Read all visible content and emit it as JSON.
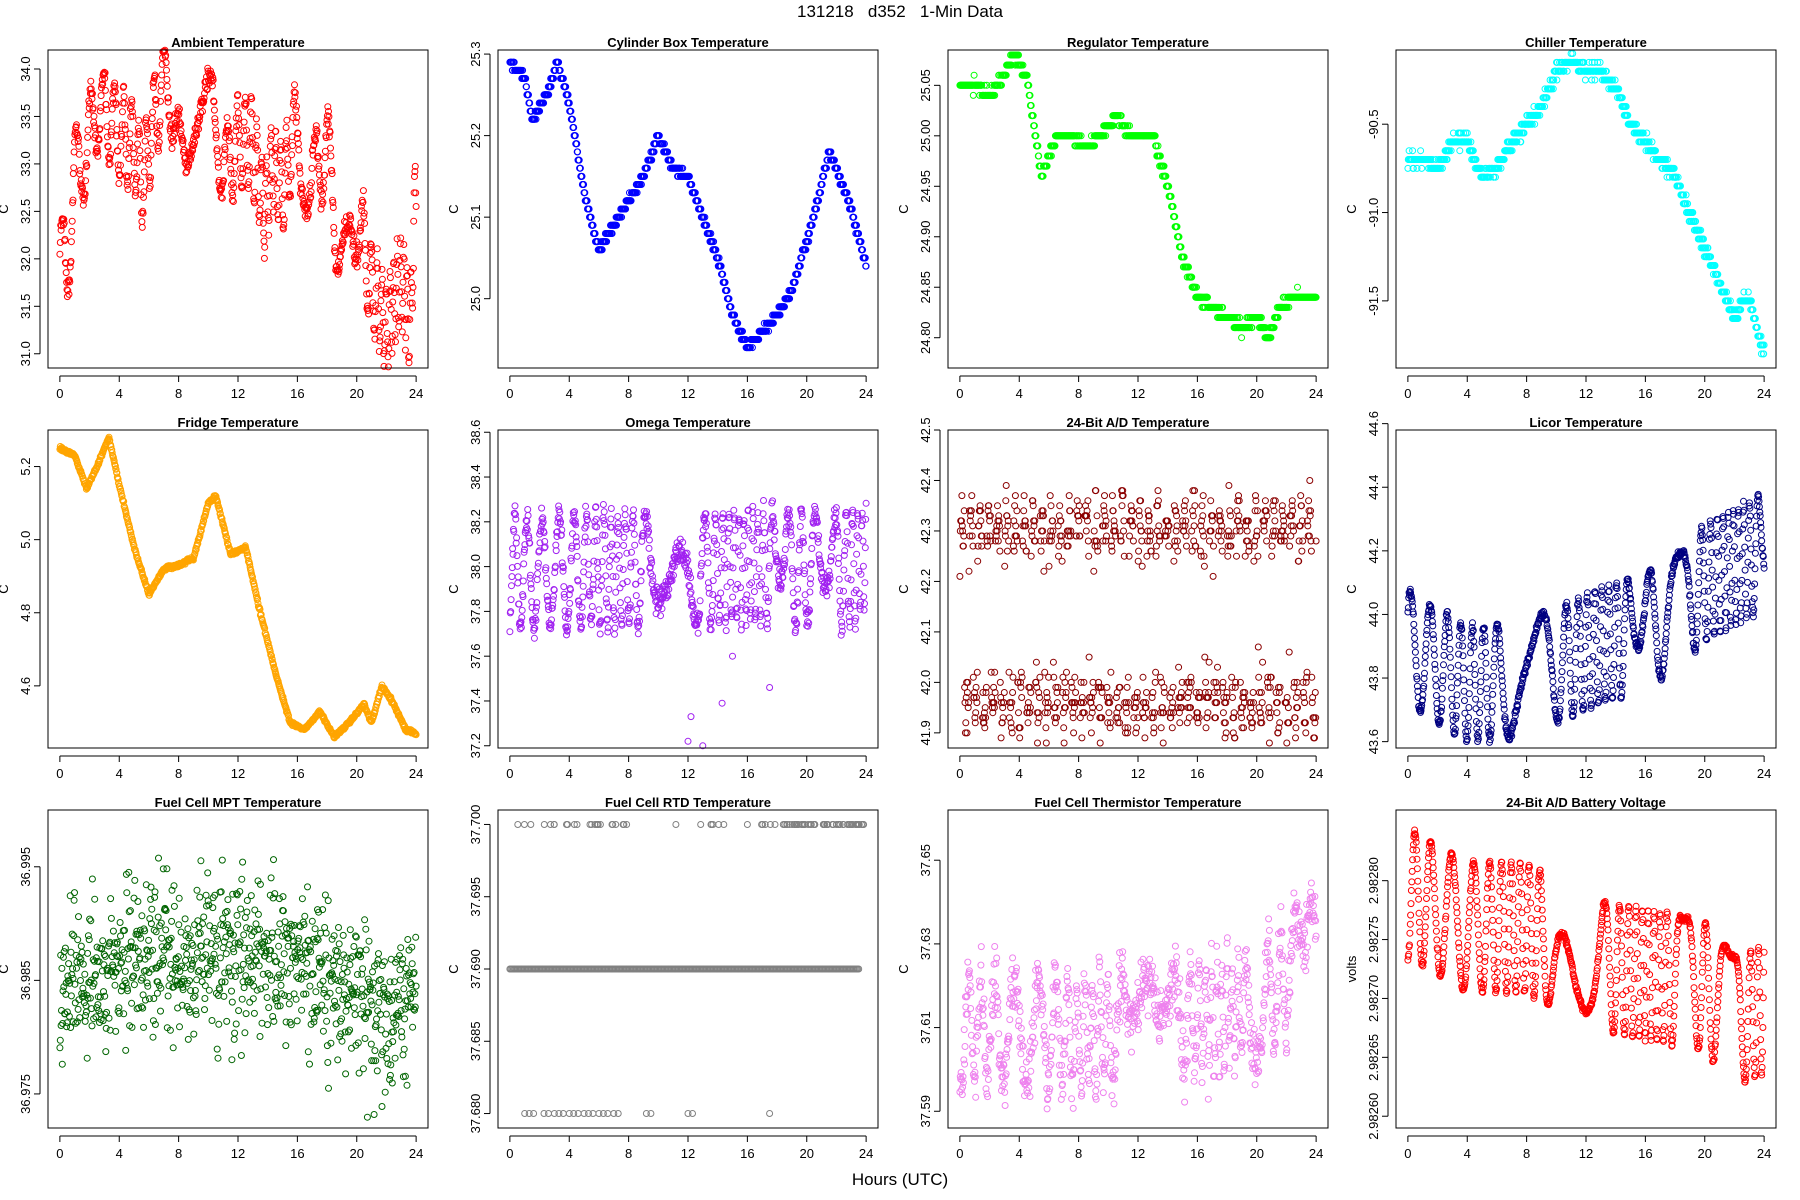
{
  "figure": {
    "title": "131218   d352   1-Min Data",
    "xlabel": "Hours (UTC)"
  },
  "chart_data": [
    {
      "type": "scatter",
      "title": "Ambient Temperature",
      "ylabel": "C",
      "color": "#ff0000",
      "x_ticks": [
        0,
        4,
        8,
        12,
        16,
        20,
        24
      ],
      "y_ticks": [
        "31.0",
        "31.5",
        "32.0",
        "32.5",
        "33.0",
        "33.5",
        "34.0"
      ],
      "ylim": [
        30.85,
        34.2
      ],
      "control": [
        [
          0,
          32.1
        ],
        [
          0.5,
          31.9
        ],
        [
          1,
          32.9
        ],
        [
          1.8,
          33.1
        ],
        [
          2.5,
          33.6
        ],
        [
          3.3,
          33.5
        ],
        [
          4,
          33.3
        ],
        [
          5,
          33.2
        ],
        [
          5.5,
          32.8
        ],
        [
          6.5,
          33.6
        ],
        [
          7.3,
          33.9
        ],
        [
          8,
          33.4
        ],
        [
          8.5,
          32.5
        ],
        [
          9.5,
          33.1
        ],
        [
          10.3,
          33.9
        ],
        [
          11,
          32.9
        ],
        [
          12,
          33.2
        ],
        [
          12.8,
          33.3
        ],
        [
          13.8,
          32.5
        ],
        [
          14.3,
          33.0
        ],
        [
          15,
          32.7
        ],
        [
          15.8,
          33.3
        ],
        [
          16.8,
          32.7
        ],
        [
          18,
          33.2
        ],
        [
          18.6,
          32.3
        ],
        [
          20,
          32.5
        ],
        [
          21,
          31.7
        ],
        [
          22,
          31.3
        ],
        [
          23,
          31.8
        ],
        [
          23.6,
          31.3
        ],
        [
          24,
          32.9
        ]
      ],
      "amp": 0.45,
      "period": 0.8,
      "noise": 0.1,
      "style": "osc"
    },
    {
      "type": "scatter",
      "title": "Cylinder Box Temperature",
      "ylabel": "C",
      "color": "#0000ff",
      "x_ticks": [
        0,
        4,
        8,
        12,
        16,
        20,
        24
      ],
      "y_ticks": [
        "25.0",
        "25.1",
        "25.2",
        "25.3"
      ],
      "ylim": [
        24.915,
        25.305
      ],
      "control": [
        [
          0,
          25.29
        ],
        [
          1,
          25.27
        ],
        [
          1.5,
          25.22
        ],
        [
          2.5,
          25.25
        ],
        [
          3.2,
          25.29
        ],
        [
          4,
          25.24
        ],
        [
          5,
          25.13
        ],
        [
          6,
          25.06
        ],
        [
          7,
          25.09
        ],
        [
          8,
          25.12
        ],
        [
          9,
          25.15
        ],
        [
          10,
          25.2
        ],
        [
          11,
          25.16
        ],
        [
          12,
          25.15
        ],
        [
          13,
          25.1
        ],
        [
          14,
          25.05
        ],
        [
          15,
          24.98
        ],
        [
          16,
          24.94
        ],
        [
          17,
          24.96
        ],
        [
          18,
          24.98
        ],
        [
          19,
          25.01
        ],
        [
          20,
          25.07
        ],
        [
          21,
          25.14
        ],
        [
          21.5,
          25.18
        ],
        [
          22,
          25.16
        ],
        [
          23,
          25.11
        ],
        [
          24,
          25.04
        ]
      ],
      "amp": 0,
      "noise": 0.003,
      "quant": 0.01,
      "style": "smooth"
    },
    {
      "type": "scatter",
      "title": "Regulator Temperature",
      "ylabel": "C",
      "color": "#00ff00",
      "x_ticks": [
        0,
        4,
        8,
        12,
        16,
        20,
        24
      ],
      "y_ticks": [
        "24.80",
        "24.85",
        "24.90",
        "24.95",
        "25.00",
        "25.05"
      ],
      "ylim": [
        24.77,
        25.085
      ],
      "control": [
        [
          0,
          25.05
        ],
        [
          1,
          25.05
        ],
        [
          2,
          25.04
        ],
        [
          3,
          25.06
        ],
        [
          3.6,
          25.08
        ],
        [
          4.5,
          25.06
        ],
        [
          5.5,
          24.96
        ],
        [
          6.5,
          25.0
        ],
        [
          7.5,
          25.0
        ],
        [
          8.5,
          24.99
        ],
        [
          9.5,
          25.0
        ],
        [
          10.5,
          25.02
        ],
        [
          11.5,
          25.0
        ],
        [
          13,
          25.0
        ],
        [
          14,
          24.95
        ],
        [
          15,
          24.88
        ],
        [
          16,
          24.84
        ],
        [
          17,
          24.83
        ],
        [
          18,
          24.82
        ],
        [
          19,
          24.81
        ],
        [
          20,
          24.82
        ],
        [
          20.8,
          24.8
        ],
        [
          21.5,
          24.83
        ],
        [
          22.5,
          24.84
        ],
        [
          24,
          24.84
        ]
      ],
      "amp": 0,
      "noise": 0.004,
      "quant": 0.01,
      "style": "smooth"
    },
    {
      "type": "scatter",
      "title": "Chiller Temperature",
      "ylabel": "C",
      "color": "#00ffff",
      "x_ticks": [
        0,
        4,
        8,
        12,
        16,
        20,
        24
      ],
      "y_ticks": [
        "-91.5",
        "-91.0",
        "-90.5"
      ],
      "ylim": [
        -91.88,
        -90.08
      ],
      "control": [
        [
          0,
          -90.7
        ],
        [
          1,
          -90.7
        ],
        [
          2,
          -90.75
        ],
        [
          3,
          -90.6
        ],
        [
          4,
          -90.6
        ],
        [
          5,
          -90.8
        ],
        [
          6,
          -90.75
        ],
        [
          7,
          -90.6
        ],
        [
          8,
          -90.5
        ],
        [
          9,
          -90.4
        ],
        [
          10,
          -90.2
        ],
        [
          11,
          -90.15
        ],
        [
          12,
          -90.2
        ],
        [
          13,
          -90.2
        ],
        [
          14,
          -90.3
        ],
        [
          15,
          -90.5
        ],
        [
          16,
          -90.6
        ],
        [
          17,
          -90.7
        ],
        [
          18,
          -90.8
        ],
        [
          19,
          -91.0
        ],
        [
          20,
          -91.2
        ],
        [
          21,
          -91.4
        ],
        [
          22,
          -91.6
        ],
        [
          22.5,
          -91.5
        ],
        [
          23,
          -91.5
        ],
        [
          24,
          -91.8
        ]
      ],
      "amp": 0,
      "noise": 0.03,
      "quant": 0.05,
      "style": "smooth"
    },
    {
      "type": "scatter",
      "title": "Fridge Temperature",
      "ylabel": "C",
      "color": "#ffa500",
      "x_ticks": [
        0,
        4,
        8,
        12,
        16,
        20,
        24
      ],
      "y_ticks": [
        "4.6",
        "4.8",
        "5.0",
        "5.2"
      ],
      "ylim": [
        4.43,
        5.3
      ],
      "control": [
        [
          0,
          5.25
        ],
        [
          1,
          5.23
        ],
        [
          1.8,
          5.14
        ],
        [
          2.5,
          5.2
        ],
        [
          3.3,
          5.28
        ],
        [
          4,
          5.15
        ],
        [
          5,
          4.98
        ],
        [
          6,
          4.85
        ],
        [
          7,
          4.92
        ],
        [
          8,
          4.93
        ],
        [
          9,
          4.95
        ],
        [
          10,
          5.1
        ],
        [
          10.5,
          5.12
        ],
        [
          11.5,
          4.96
        ],
        [
          12.5,
          4.98
        ],
        [
          13.5,
          4.8
        ],
        [
          14.5,
          4.64
        ],
        [
          15.5,
          4.5
        ],
        [
          16.5,
          4.48
        ],
        [
          17.5,
          4.53
        ],
        [
          18.5,
          4.46
        ],
        [
          19.5,
          4.5
        ],
        [
          20.5,
          4.55
        ],
        [
          21,
          4.5
        ],
        [
          21.7,
          4.6
        ],
        [
          22.5,
          4.55
        ],
        [
          23.3,
          4.48
        ],
        [
          24,
          4.47
        ]
      ],
      "amp": 0,
      "noise": 0.004,
      "style": "smooth"
    },
    {
      "type": "scatter",
      "title": "Omega Temperature",
      "ylabel": "C",
      "color": "#a020f0",
      "x_ticks": [
        0,
        4,
        8,
        12,
        16,
        20,
        24
      ],
      "y_ticks": [
        "37.2",
        "37.4",
        "37.6",
        "37.8",
        "38.0",
        "38.2",
        "38.4",
        "38.6"
      ],
      "ylim": [
        37.19,
        38.61
      ],
      "control": [
        [
          0,
          37.97
        ],
        [
          4,
          37.98
        ],
        [
          8,
          37.98
        ],
        [
          12,
          37.98
        ],
        [
          16,
          37.99
        ],
        [
          20,
          37.98
        ],
        [
          23,
          37.98
        ],
        [
          24,
          38.05
        ]
      ],
      "amp": 0.25,
      "period": 0.85,
      "noise": 0.05,
      "style": "osc",
      "outliers": [
        [
          12,
          37.22
        ],
        [
          12.2,
          37.33
        ],
        [
          13,
          37.2
        ],
        [
          14.3,
          37.39
        ],
        [
          15,
          37.6
        ],
        [
          17.5,
          37.46
        ]
      ]
    },
    {
      "type": "scatter",
      "title": "24-Bit A/D Temperature",
      "ylabel": "C",
      "color": "#8b0000",
      "x_ticks": [
        0,
        4,
        8,
        12,
        16,
        20,
        24
      ],
      "y_ticks": [
        "41.9",
        "42.0",
        "42.1",
        "42.2",
        "42.3",
        "42.4",
        "42.5"
      ],
      "ylim": [
        41.87,
        42.5
      ],
      "control": [
        [
          0,
          42.15
        ],
        [
          24,
          42.15
        ]
      ],
      "amp": 0.16,
      "period": 0.6,
      "noise": 0.05,
      "quant": 0.01,
      "style": "bimodal"
    },
    {
      "type": "scatter",
      "title": "Licor Temperature",
      "ylabel": "C",
      "color": "#000080",
      "x_ticks": [
        0,
        4,
        8,
        12,
        16,
        20,
        24
      ],
      "y_ticks": [
        "43.6",
        "43.8",
        "44.0",
        "44.2",
        "44.4",
        "44.6"
      ],
      "ylim": [
        43.58,
        44.58
      ],
      "control": [
        [
          0,
          43.9
        ],
        [
          4,
          43.78
        ],
        [
          8,
          43.8
        ],
        [
          12,
          43.88
        ],
        [
          16,
          43.95
        ],
        [
          18,
          44.0
        ],
        [
          20,
          44.1
        ],
        [
          22,
          44.15
        ],
        [
          24,
          44.2
        ]
      ],
      "amp": 0.18,
      "period": 1.15,
      "noise": 0.01,
      "style": "osc"
    },
    {
      "type": "scatter",
      "title": "Fuel Cell MPT Temperature",
      "ylabel": "C",
      "color": "#006400",
      "x_ticks": [
        0,
        4,
        8,
        12,
        16,
        20,
        24
      ],
      "y_ticks": [
        "36.975",
        "36.985",
        "36.995"
      ],
      "ylim": [
        36.972,
        37.0
      ],
      "control": [
        [
          0,
          36.984
        ],
        [
          4,
          36.986
        ],
        [
          8,
          36.987
        ],
        [
          12,
          36.987
        ],
        [
          16,
          36.987
        ],
        [
          20,
          36.984
        ],
        [
          22,
          36.981
        ],
        [
          24,
          36.984
        ]
      ],
      "amp": 0,
      "noise": 0.006,
      "style": "noise"
    },
    {
      "type": "scatter",
      "title": "Fuel Cell RTD Temperature",
      "ylabel": "C",
      "color": "#808080",
      "x_ticks": [
        0,
        4,
        8,
        12,
        16,
        20,
        24
      ],
      "y_ticks": [
        "37.680",
        "37.685",
        "37.690",
        "37.695",
        "37.700"
      ],
      "ylim": [
        37.679,
        37.701
      ],
      "levels": [
        37.68,
        37.69,
        37.7
      ],
      "style": "levels"
    },
    {
      "type": "scatter",
      "title": "Fuel Cell Thermistor Temperature",
      "ylabel": "C",
      "color": "#ee82ee",
      "x_ticks": [
        0,
        4,
        8,
        12,
        16,
        20,
        24
      ],
      "y_ticks": [
        "37.59",
        "37.61",
        "37.63",
        "37.65"
      ],
      "ylim": [
        37.586,
        37.662
      ],
      "control": [
        [
          0,
          37.61
        ],
        [
          8,
          37.608
        ],
        [
          16,
          37.612
        ],
        [
          20,
          37.615
        ],
        [
          24,
          37.63
        ]
      ],
      "amp": 0.012,
      "period": 1.0,
      "noise": 0.006,
      "style": "osc"
    },
    {
      "type": "scatter",
      "title": "24-Bit A/D Battery Voltage",
      "ylabel": "volts",
      "color": "#ff0000",
      "x_ticks": [
        0,
        4,
        8,
        12,
        16,
        20,
        24
      ],
      "y_ticks": [
        "2.98260",
        "2.98265",
        "2.98270",
        "2.98275",
        "2.98280"
      ],
      "ylim": [
        2.98259,
        2.98286
      ],
      "control": [
        [
          0,
          2.98279
        ],
        [
          4,
          2.98276
        ],
        [
          8,
          2.98276
        ],
        [
          12,
          2.98273
        ],
        [
          16,
          2.98272
        ],
        [
          20,
          2.98271
        ],
        [
          22,
          2.98268
        ],
        [
          24,
          2.98269
        ]
      ],
      "amp": 5.5e-05,
      "period": 1.1,
      "noise": 2e-06,
      "style": "osc"
    }
  ]
}
